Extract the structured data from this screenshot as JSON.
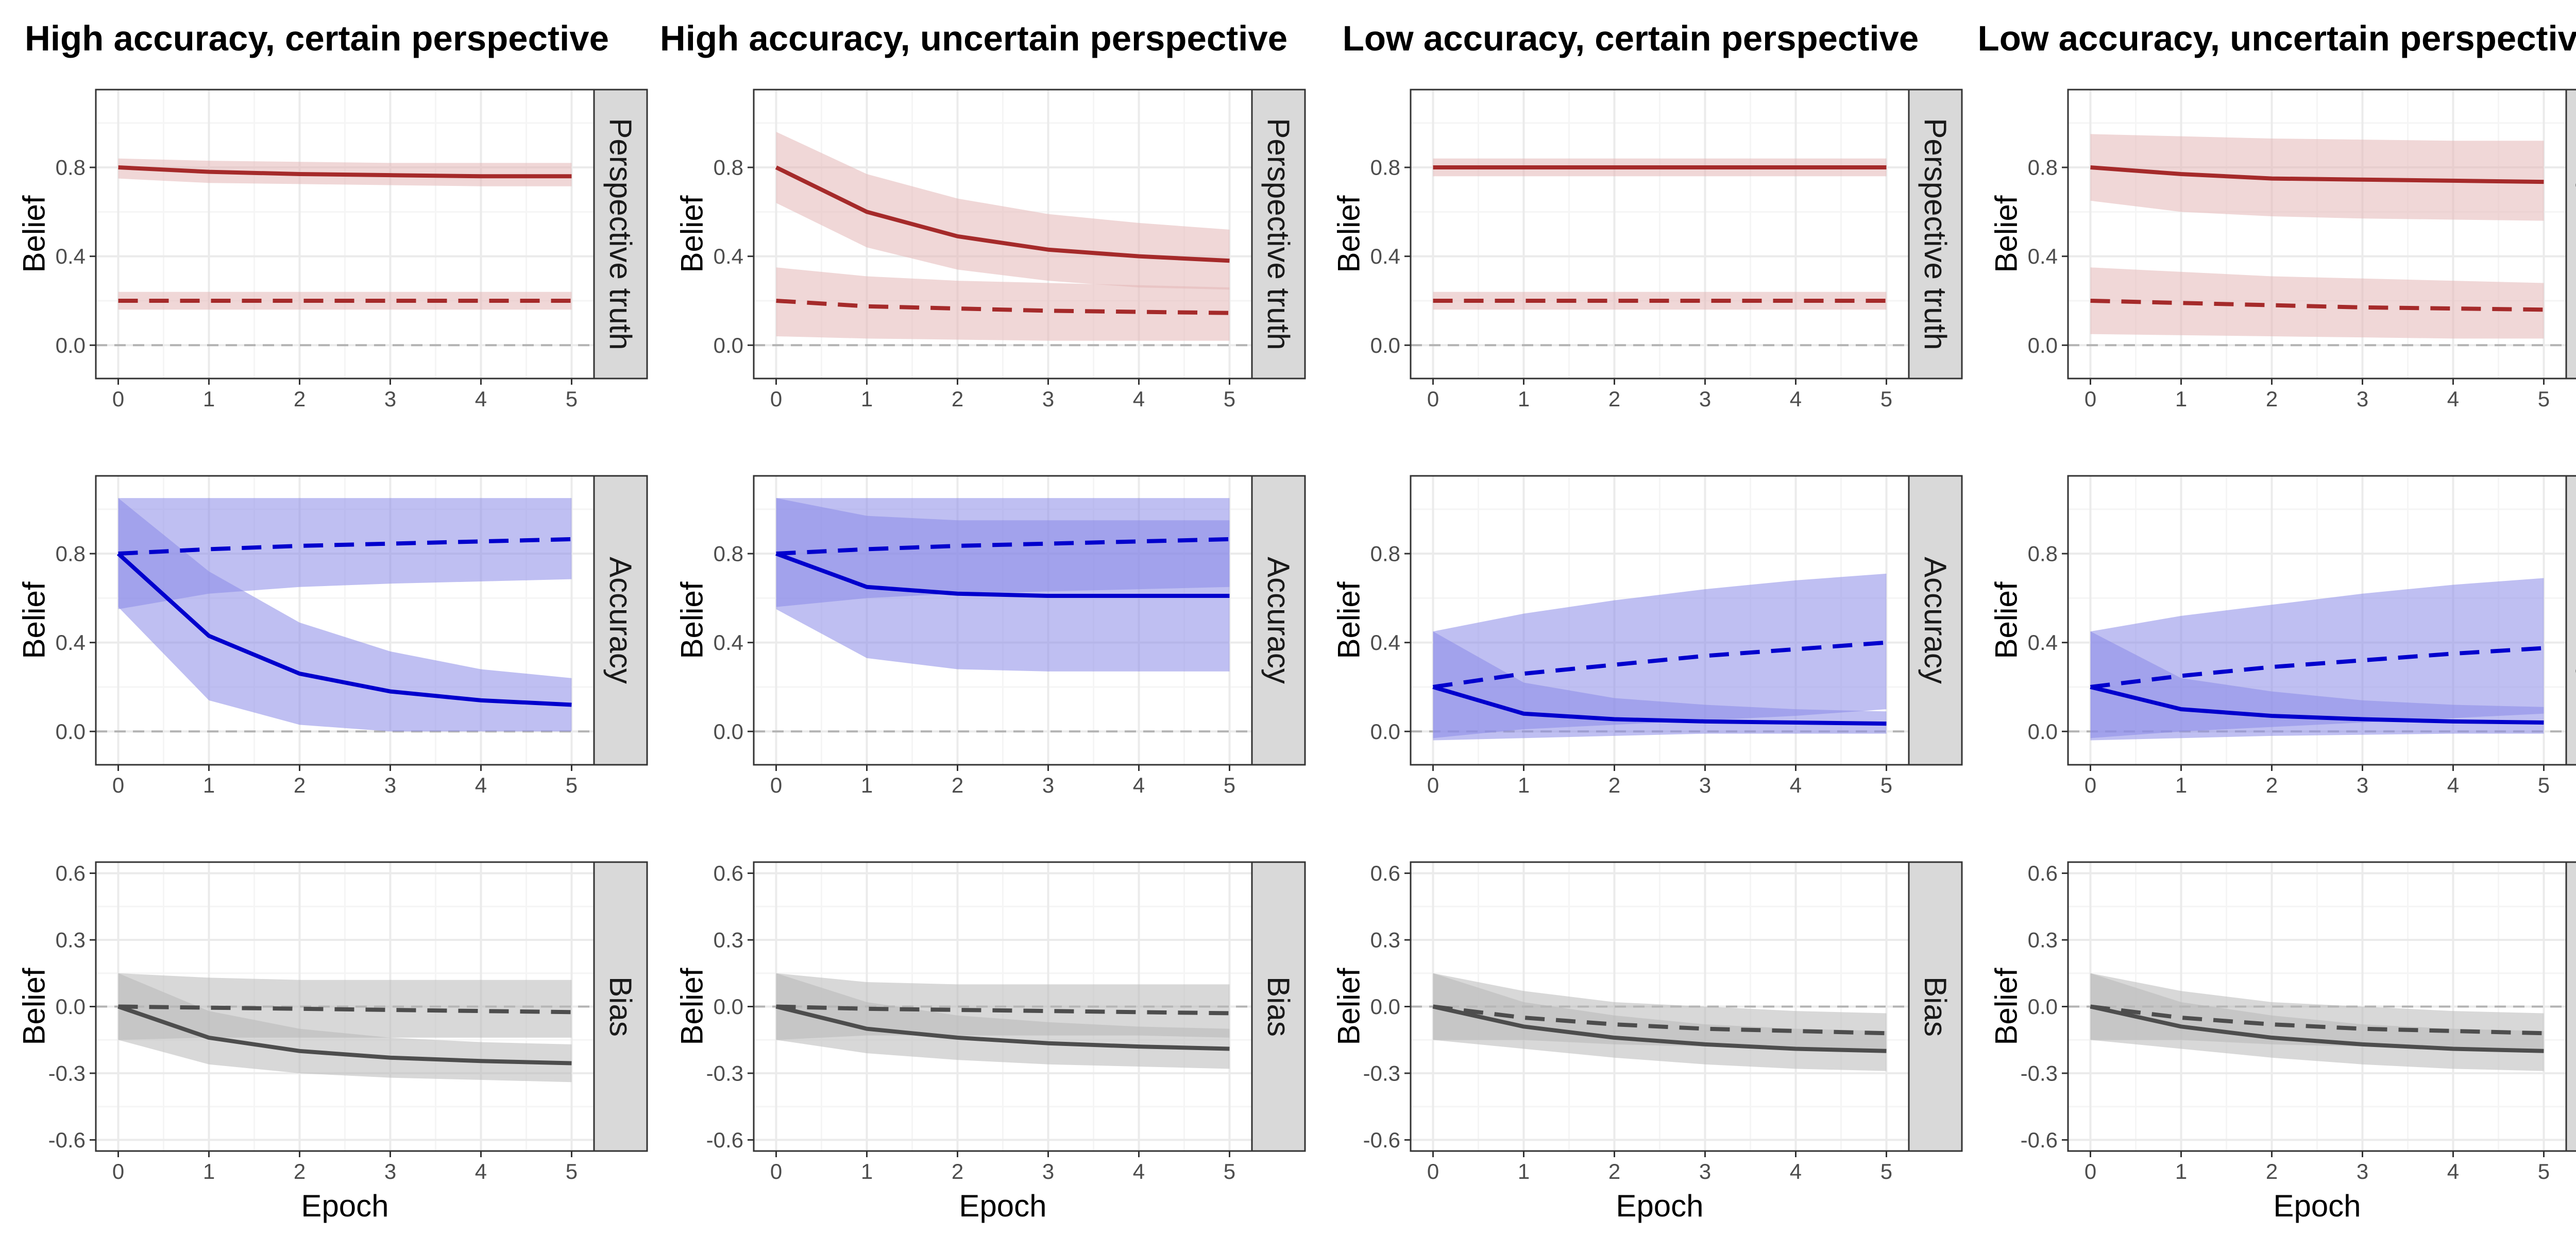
{
  "figure": {
    "column_titles": [
      "High accuracy, certain perspective",
      "High accuracy, uncertain perspective",
      "Low accuracy, certain perspective",
      "Low accuracy, uncertain perspective"
    ],
    "row_strips": [
      "Perspective truth",
      "Accuracy",
      "Bias"
    ],
    "y_axis_title": "Belief",
    "x_axis_title": "Epoch"
  },
  "colors": {
    "perspective_truth": "#A52A2A",
    "accuracy": "#0000CD",
    "bias": "#4D4D4D",
    "perspective_truth_band": "#E3B7B7",
    "accuracy_band": "#8A8AE8",
    "bias_band": "#B8B8B8",
    "strip_background": "#D9D9D9",
    "grid_major": "#EBEBEB",
    "grid_minor": "#F5F5F5",
    "zero_reference": "#B3B3B3"
  },
  "chart_data": {
    "type": "line",
    "facet_layout": {
      "rows": 3,
      "columns": 4
    },
    "x": [
      0,
      1,
      2,
      3,
      4,
      5
    ],
    "x_ticks": [
      0,
      1,
      2,
      3,
      4,
      5
    ],
    "xlabel": "Epoch",
    "ylabel": "Belief",
    "reference_line": {
      "y": 0,
      "style": "dashed"
    },
    "rows": [
      {
        "strip": "Perspective truth",
        "ylim": [
          -0.15,
          1.15
        ],
        "y_ticks": [
          0.0,
          0.4,
          0.8
        ],
        "y_tick_labels": [
          "0.0",
          "0.4",
          "0.8"
        ],
        "color_key": "perspective_truth",
        "band_key": "perspective_truth_band"
      },
      {
        "strip": "Accuracy",
        "ylim": [
          -0.15,
          1.15
        ],
        "y_ticks": [
          0.0,
          0.4,
          0.8
        ],
        "y_tick_labels": [
          "0.0",
          "0.4",
          "0.8"
        ],
        "color_key": "accuracy",
        "band_key": "accuracy_band"
      },
      {
        "strip": "Bias",
        "ylim": [
          -0.65,
          0.65
        ],
        "y_ticks": [
          -0.6,
          -0.3,
          0.0,
          0.3,
          0.6
        ],
        "y_tick_labels": [
          "-0.6",
          "-0.3",
          "0.0",
          "0.3",
          "0.6"
        ],
        "color_key": "bias",
        "band_key": "bias_band"
      }
    ],
    "panels": [
      [
        {
          "series": [
            {
              "linetype": "solid",
              "values": [
                0.8,
                0.78,
                0.77,
                0.765,
                0.76,
                0.76
              ],
              "lower": [
                0.75,
                0.73,
                0.725,
                0.72,
                0.715,
                0.715
              ],
              "upper": [
                0.84,
                0.83,
                0.825,
                0.82,
                0.82,
                0.82
              ]
            },
            {
              "linetype": "dashed",
              "values": [
                0.2,
                0.2,
                0.2,
                0.2,
                0.2,
                0.2
              ],
              "lower": [
                0.16,
                0.16,
                0.16,
                0.16,
                0.16,
                0.16
              ],
              "upper": [
                0.24,
                0.24,
                0.24,
                0.24,
                0.24,
                0.24
              ]
            }
          ]
        },
        {
          "series": [
            {
              "linetype": "solid",
              "values": [
                0.8,
                0.6,
                0.49,
                0.43,
                0.4,
                0.38
              ],
              "lower": [
                0.64,
                0.44,
                0.34,
                0.29,
                0.26,
                0.25
              ],
              "upper": [
                0.96,
                0.77,
                0.66,
                0.59,
                0.55,
                0.52
              ]
            },
            {
              "linetype": "dashed",
              "values": [
                0.2,
                0.175,
                0.165,
                0.155,
                0.15,
                0.145
              ],
              "lower": [
                0.04,
                0.03,
                0.025,
                0.02,
                0.02,
                0.02
              ],
              "upper": [
                0.35,
                0.31,
                0.29,
                0.28,
                0.27,
                0.26
              ]
            }
          ]
        },
        {
          "series": [
            {
              "linetype": "solid",
              "values": [
                0.8,
                0.8,
                0.8,
                0.8,
                0.8,
                0.8
              ],
              "lower": [
                0.76,
                0.76,
                0.76,
                0.76,
                0.76,
                0.76
              ],
              "upper": [
                0.84,
                0.84,
                0.84,
                0.84,
                0.84,
                0.84
              ]
            },
            {
              "linetype": "dashed",
              "values": [
                0.2,
                0.2,
                0.2,
                0.2,
                0.2,
                0.2
              ],
              "lower": [
                0.16,
                0.16,
                0.16,
                0.16,
                0.16,
                0.16
              ],
              "upper": [
                0.24,
                0.24,
                0.24,
                0.24,
                0.24,
                0.24
              ]
            }
          ]
        },
        {
          "series": [
            {
              "linetype": "solid",
              "values": [
                0.8,
                0.77,
                0.75,
                0.745,
                0.74,
                0.735
              ],
              "lower": [
                0.65,
                0.6,
                0.58,
                0.57,
                0.565,
                0.56
              ],
              "upper": [
                0.95,
                0.94,
                0.93,
                0.925,
                0.92,
                0.92
              ]
            },
            {
              "linetype": "dashed",
              "values": [
                0.2,
                0.19,
                0.18,
                0.17,
                0.165,
                0.16
              ],
              "lower": [
                0.05,
                0.045,
                0.04,
                0.035,
                0.03,
                0.03
              ],
              "upper": [
                0.35,
                0.33,
                0.31,
                0.3,
                0.29,
                0.28
              ]
            }
          ]
        }
      ],
      [
        {
          "series": [
            {
              "linetype": "solid",
              "values": [
                0.8,
                0.43,
                0.26,
                0.18,
                0.14,
                0.12
              ],
              "lower": [
                0.56,
                0.14,
                0.03,
                0.0,
                0.0,
                0.0
              ],
              "upper": [
                1.05,
                0.72,
                0.49,
                0.36,
                0.28,
                0.24
              ]
            },
            {
              "linetype": "dashed",
              "values": [
                0.8,
                0.82,
                0.835,
                0.845,
                0.855,
                0.865
              ],
              "lower": [
                0.55,
                0.62,
                0.65,
                0.665,
                0.675,
                0.685
              ],
              "upper": [
                1.05,
                1.05,
                1.05,
                1.05,
                1.05,
                1.05
              ]
            }
          ]
        },
        {
          "series": [
            {
              "linetype": "solid",
              "values": [
                0.8,
                0.65,
                0.62,
                0.61,
                0.61,
                0.61
              ],
              "lower": [
                0.55,
                0.33,
                0.28,
                0.27,
                0.27,
                0.27
              ],
              "upper": [
                1.05,
                0.97,
                0.95,
                0.95,
                0.95,
                0.95
              ]
            },
            {
              "linetype": "dashed",
              "values": [
                0.8,
                0.82,
                0.835,
                0.845,
                0.855,
                0.865
              ],
              "lower": [
                0.56,
                0.6,
                0.62,
                0.63,
                0.64,
                0.65
              ],
              "upper": [
                1.05,
                1.05,
                1.05,
                1.05,
                1.05,
                1.05
              ]
            }
          ]
        },
        {
          "series": [
            {
              "linetype": "solid",
              "values": [
                0.2,
                0.08,
                0.055,
                0.045,
                0.04,
                0.035
              ],
              "lower": [
                -0.04,
                -0.03,
                -0.02,
                -0.01,
                -0.01,
                -0.01
              ],
              "upper": [
                0.45,
                0.22,
                0.15,
                0.12,
                0.1,
                0.09
              ]
            },
            {
              "linetype": "dashed",
              "values": [
                0.2,
                0.26,
                0.3,
                0.34,
                0.37,
                0.4
              ],
              "lower": [
                -0.03,
                0.01,
                0.03,
                0.05,
                0.07,
                0.1
              ],
              "upper": [
                0.45,
                0.53,
                0.59,
                0.64,
                0.68,
                0.71
              ]
            }
          ]
        },
        {
          "series": [
            {
              "linetype": "solid",
              "values": [
                0.2,
                0.1,
                0.07,
                0.055,
                0.045,
                0.04
              ],
              "lower": [
                -0.04,
                -0.03,
                -0.02,
                -0.015,
                -0.01,
                -0.01
              ],
              "upper": [
                0.45,
                0.24,
                0.18,
                0.14,
                0.12,
                0.11
              ]
            },
            {
              "linetype": "dashed",
              "values": [
                0.2,
                0.25,
                0.29,
                0.32,
                0.35,
                0.375
              ],
              "lower": [
                -0.03,
                0.0,
                0.02,
                0.04,
                0.06,
                0.08
              ],
              "upper": [
                0.45,
                0.52,
                0.57,
                0.62,
                0.66,
                0.69
              ]
            }
          ]
        }
      ],
      [
        {
          "series": [
            {
              "linetype": "solid",
              "values": [
                0.0,
                -0.14,
                -0.2,
                -0.23,
                -0.245,
                -0.255
              ],
              "lower": [
                -0.15,
                -0.26,
                -0.3,
                -0.32,
                -0.33,
                -0.34
              ],
              "upper": [
                0.15,
                -0.02,
                -0.1,
                -0.14,
                -0.16,
                -0.17
              ]
            },
            {
              "linetype": "dashed",
              "values": [
                0.0,
                -0.005,
                -0.01,
                -0.015,
                -0.02,
                -0.025
              ],
              "lower": [
                -0.15,
                -0.14,
                -0.14,
                -0.14,
                -0.14,
                -0.14
              ],
              "upper": [
                0.15,
                0.13,
                0.12,
                0.12,
                0.12,
                0.12
              ]
            }
          ]
        },
        {
          "series": [
            {
              "linetype": "solid",
              "values": [
                0.0,
                -0.1,
                -0.14,
                -0.165,
                -0.18,
                -0.19
              ],
              "lower": [
                -0.15,
                -0.21,
                -0.24,
                -0.26,
                -0.27,
                -0.28
              ],
              "upper": [
                0.15,
                0.02,
                -0.04,
                -0.07,
                -0.09,
                -0.1
              ]
            },
            {
              "linetype": "dashed",
              "values": [
                0.0,
                -0.01,
                -0.015,
                -0.02,
                -0.025,
                -0.03
              ],
              "lower": [
                -0.15,
                -0.13,
                -0.13,
                -0.13,
                -0.13,
                -0.14
              ],
              "upper": [
                0.15,
                0.11,
                0.1,
                0.1,
                0.1,
                0.1
              ]
            }
          ]
        },
        {
          "series": [
            {
              "linetype": "solid",
              "values": [
                0.0,
                -0.09,
                -0.14,
                -0.17,
                -0.19,
                -0.2
              ],
              "lower": [
                -0.15,
                -0.19,
                -0.23,
                -0.26,
                -0.28,
                -0.29
              ],
              "upper": [
                0.15,
                0.02,
                -0.04,
                -0.08,
                -0.1,
                -0.11
              ]
            },
            {
              "linetype": "dashed",
              "values": [
                0.0,
                -0.05,
                -0.08,
                -0.1,
                -0.11,
                -0.12
              ],
              "lower": [
                -0.15,
                -0.15,
                -0.17,
                -0.18,
                -0.19,
                -0.2
              ],
              "upper": [
                0.15,
                0.07,
                0.02,
                0.0,
                -0.02,
                -0.03
              ]
            }
          ]
        },
        {
          "series": [
            {
              "linetype": "solid",
              "values": [
                0.0,
                -0.09,
                -0.14,
                -0.17,
                -0.19,
                -0.2
              ],
              "lower": [
                -0.15,
                -0.19,
                -0.23,
                -0.26,
                -0.28,
                -0.29
              ],
              "upper": [
                0.15,
                0.02,
                -0.04,
                -0.08,
                -0.1,
                -0.11
              ]
            },
            {
              "linetype": "dashed",
              "values": [
                0.0,
                -0.05,
                -0.08,
                -0.1,
                -0.11,
                -0.12
              ],
              "lower": [
                -0.15,
                -0.15,
                -0.17,
                -0.18,
                -0.19,
                -0.2
              ],
              "upper": [
                0.15,
                0.07,
                0.02,
                0.0,
                -0.02,
                -0.03
              ]
            }
          ]
        }
      ]
    ]
  }
}
